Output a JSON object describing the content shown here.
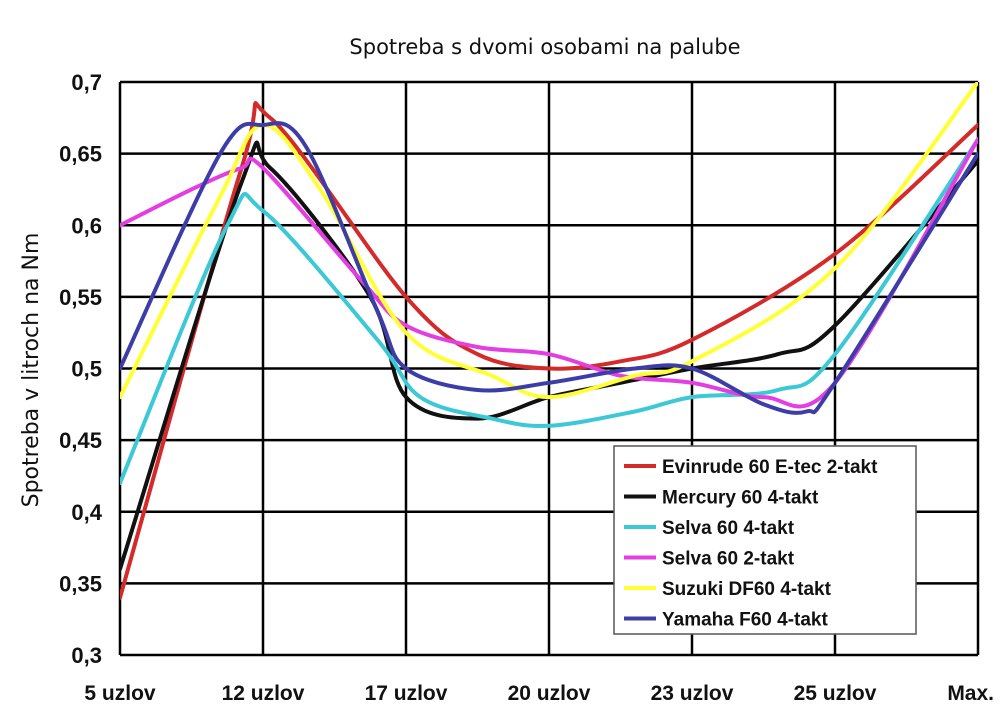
{
  "chart_data": {
    "type": "line",
    "title": "Spotreba s dvomi osobami na palube",
    "ylabel": "Spotreba v litroch na Nm",
    "xlabel": "",
    "categories": [
      "5 uzlov",
      "12 uzlov",
      "17 uzlov",
      "20 uzlov",
      "23 uzlov",
      "25 uzlov",
      "Max."
    ],
    "ylim": [
      0.3,
      0.7
    ],
    "yticks": [
      "0,3",
      "0,35",
      "0,4",
      "0,45",
      "0,5",
      "0,55",
      "0,6",
      "0,65",
      "0,7"
    ],
    "grid": true,
    "legend_position": "bottom-right",
    "series": [
      {
        "name": "Evinrude 60 E-tec 2-takt",
        "color": "#d42a2a",
        "points": [
          [
            0,
            0.34
          ],
          [
            0.85,
            0.64
          ],
          [
            1.05,
            0.675
          ],
          [
            2.0,
            0.55
          ],
          [
            2.5,
            0.51
          ],
          [
            3.0,
            0.5
          ],
          [
            3.5,
            0.505
          ],
          [
            4.0,
            0.52
          ],
          [
            5.0,
            0.58
          ],
          [
            6.0,
            0.67
          ]
        ]
      },
      {
        "name": "Mercury 60 4-takt",
        "color": "#111111",
        "points": [
          [
            0,
            0.36
          ],
          [
            0.85,
            0.63
          ],
          [
            1.05,
            0.64
          ],
          [
            1.75,
            0.55
          ],
          [
            2.0,
            0.48
          ],
          [
            2.5,
            0.465
          ],
          [
            3.0,
            0.48
          ],
          [
            3.5,
            0.49
          ],
          [
            4.0,
            0.5
          ],
          [
            4.6,
            0.51
          ],
          [
            5.0,
            0.53
          ],
          [
            6.0,
            0.645
          ]
        ]
      },
      {
        "name": "Selva 60 4-takt",
        "color": "#3cc8d6",
        "points": [
          [
            0,
            0.42
          ],
          [
            0.75,
            0.6
          ],
          [
            1.0,
            0.61
          ],
          [
            1.8,
            0.52
          ],
          [
            2.1,
            0.48
          ],
          [
            2.6,
            0.465
          ],
          [
            3.0,
            0.46
          ],
          [
            3.6,
            0.47
          ],
          [
            4.0,
            0.48
          ],
          [
            4.6,
            0.485
          ],
          [
            5.0,
            0.51
          ],
          [
            6.0,
            0.66
          ]
        ]
      },
      {
        "name": "Selva 60 2-takt",
        "color": "#e23ee2",
        "points": [
          [
            0,
            0.6
          ],
          [
            0.5,
            0.625
          ],
          [
            0.85,
            0.64
          ],
          [
            1.0,
            0.64
          ],
          [
            1.7,
            0.56
          ],
          [
            2.0,
            0.53
          ],
          [
            2.5,
            0.515
          ],
          [
            3.0,
            0.51
          ],
          [
            3.5,
            0.495
          ],
          [
            4.0,
            0.49
          ],
          [
            4.5,
            0.48
          ],
          [
            5.0,
            0.49
          ],
          [
            6.0,
            0.66
          ]
        ]
      },
      {
        "name": "Suzuki DF60 4-takt",
        "color": "#ffff33",
        "points": [
          [
            0,
            0.48
          ],
          [
            0.7,
            0.62
          ],
          [
            1.0,
            0.67
          ],
          [
            1.4,
            0.625
          ],
          [
            2.0,
            0.525
          ],
          [
            2.6,
            0.495
          ],
          [
            3.0,
            0.48
          ],
          [
            3.6,
            0.495
          ],
          [
            4.0,
            0.505
          ],
          [
            5.0,
            0.57
          ],
          [
            6.0,
            0.7
          ]
        ]
      },
      {
        "name": "Yamaha F60 4-takt",
        "color": "#3d3da8",
        "points": [
          [
            0,
            0.5
          ],
          [
            0.7,
            0.65
          ],
          [
            1.0,
            0.67
          ],
          [
            1.3,
            0.655
          ],
          [
            1.8,
            0.54
          ],
          [
            2.0,
            0.5
          ],
          [
            2.5,
            0.485
          ],
          [
            3.0,
            0.49
          ],
          [
            3.6,
            0.5
          ],
          [
            4.0,
            0.5
          ],
          [
            4.5,
            0.475
          ],
          [
            4.8,
            0.47
          ],
          [
            5.0,
            0.49
          ],
          [
            6.0,
            0.65
          ]
        ]
      }
    ]
  }
}
